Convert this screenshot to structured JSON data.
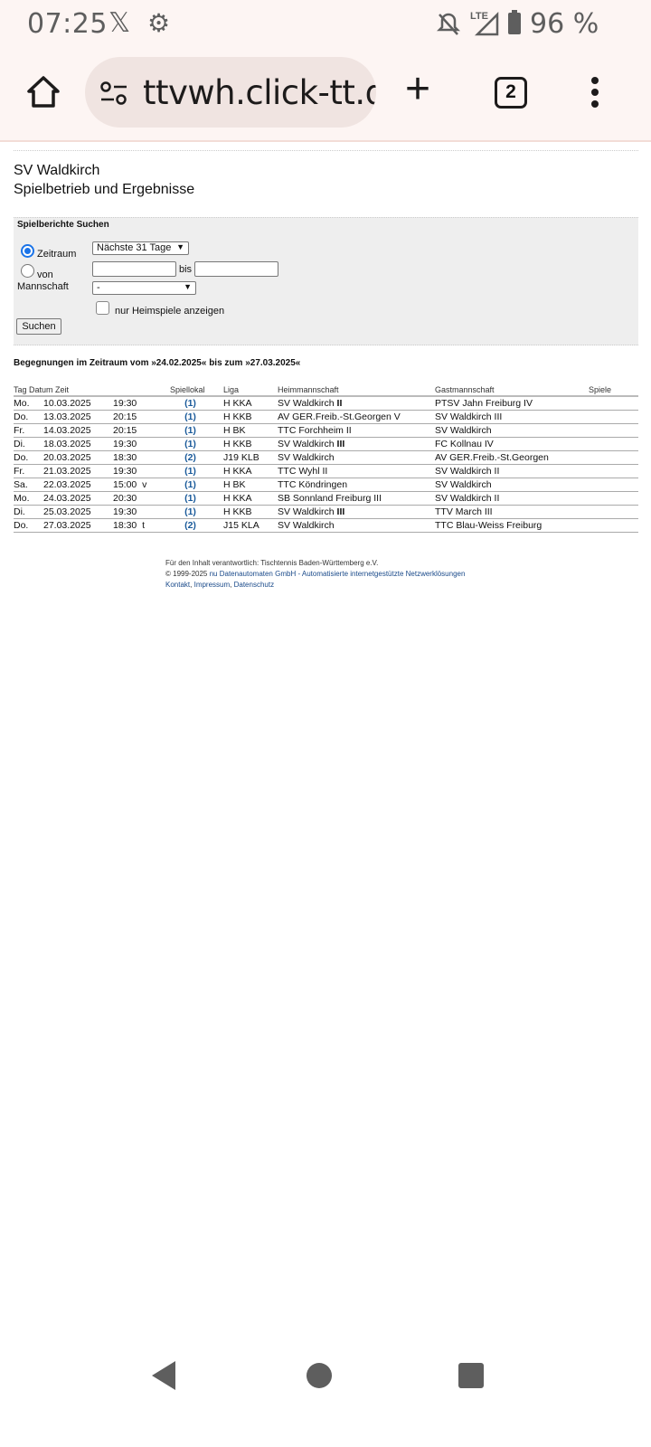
{
  "status_bar": {
    "time": "07:25",
    "battery": "96 %",
    "icons": [
      "x-logo-icon",
      "gear-icon",
      "bell-off-icon",
      "lte-signal-icon",
      "battery-icon"
    ]
  },
  "browser": {
    "url": "ttvwh.click-tt.de/",
    "tab_count": "2"
  },
  "page": {
    "club": "SV Waldkirch",
    "subtitle": "Spielbetrieb und Ergebnisse"
  },
  "search": {
    "title": "Spielberichte Suchen",
    "zeitraum_label": "Zeitraum",
    "zeitraum_value": "Nächste 31 Tage",
    "von_label": "von",
    "bis_label": "bis",
    "von_value": "",
    "bis_value": "",
    "mannschaft_label": "Mannschaft",
    "mannschaft_value": "-",
    "heimspiele_label": "nur Heimspiele anzeigen",
    "submit": "Suchen"
  },
  "results": {
    "period": "Begegnungen im Zeitraum vom »24.02.2025« bis zum »27.03.2025«",
    "headers": {
      "tag": "Tag Datum Zeit",
      "lokal": "Spiellokal",
      "liga": "Liga",
      "heim": "Heimmannschaft",
      "gast": "Gastmannschaft",
      "spiele": "Spiele"
    },
    "rows": [
      {
        "tag": "Mo.",
        "datum": "10.03.2025",
        "zeit": "19:30",
        "flag": "",
        "lokal": "(1)",
        "liga": "H KKA",
        "heim": "SV Waldkirch",
        "heim_suffix": " II",
        "gast": "PTSV Jahn Freiburg IV",
        "spiele": ""
      },
      {
        "tag": "Do.",
        "datum": "13.03.2025",
        "zeit": "20:15",
        "flag": "",
        "lokal": "(1)",
        "liga": "H KKB",
        "heim": "AV GER.Freib.-St.Georgen V",
        "heim_suffix": "",
        "gast": "SV Waldkirch III",
        "spiele": ""
      },
      {
        "tag": "Fr.",
        "datum": "14.03.2025",
        "zeit": "20:15",
        "flag": "",
        "lokal": "(1)",
        "liga": "H BK",
        "heim": "TTC Forchheim II",
        "heim_suffix": "",
        "gast": "SV Waldkirch",
        "spiele": ""
      },
      {
        "tag": "Di.",
        "datum": "18.03.2025",
        "zeit": "19:30",
        "flag": "",
        "lokal": "(1)",
        "liga": "H KKB",
        "heim": "SV Waldkirch",
        "heim_suffix": " III",
        "gast": "FC Kollnau IV",
        "spiele": ""
      },
      {
        "tag": "Do.",
        "datum": "20.03.2025",
        "zeit": "18:30",
        "flag": "",
        "lokal": "(2)",
        "liga": "J19 KLB",
        "heim": "SV Waldkirch",
        "heim_suffix": "",
        "gast": "AV GER.Freib.-St.Georgen",
        "spiele": ""
      },
      {
        "tag": "Fr.",
        "datum": "21.03.2025",
        "zeit": "19:30",
        "flag": "",
        "lokal": "(1)",
        "liga": "H KKA",
        "heim": "TTC Wyhl II",
        "heim_suffix": "",
        "gast": "SV Waldkirch II",
        "spiele": ""
      },
      {
        "tag": "Sa.",
        "datum": "22.03.2025",
        "zeit": "15:00",
        "flag": "v",
        "lokal": "(1)",
        "liga": "H BK",
        "heim": "TTC Köndringen",
        "heim_suffix": "",
        "gast": "SV Waldkirch",
        "spiele": ""
      },
      {
        "tag": "Mo.",
        "datum": "24.03.2025",
        "zeit": "20:30",
        "flag": "",
        "lokal": "(1)",
        "liga": "H KKA",
        "heim": "SB Sonnland Freiburg III",
        "heim_suffix": "",
        "gast": "SV Waldkirch II",
        "spiele": ""
      },
      {
        "tag": "Di.",
        "datum": "25.03.2025",
        "zeit": "19:30",
        "flag": "",
        "lokal": "(1)",
        "liga": "H KKB",
        "heim": "SV Waldkirch",
        "heim_suffix": " III",
        "gast": "TTV March III",
        "spiele": ""
      },
      {
        "tag": "Do.",
        "datum": "27.03.2025",
        "zeit": "18:30",
        "flag": "t",
        "lokal": "(2)",
        "liga": "J15 KLA",
        "heim": "SV Waldkirch",
        "heim_suffix": "",
        "gast": "TTC Blau-Weiss Freiburg",
        "spiele": ""
      }
    ]
  },
  "footer": {
    "line1": "Für den Inhalt verantwortlich: Tischtennis Baden-Württemberg e.V.",
    "copyright": "© 1999-2025",
    "nu_link": "nu Datenautomaten GmbH - Automatisierte internetgestützte Netzwerklösungen",
    "kontakt": "Kontakt",
    "impressum": "Impressum",
    "datenschutz": "Datenschutz"
  }
}
